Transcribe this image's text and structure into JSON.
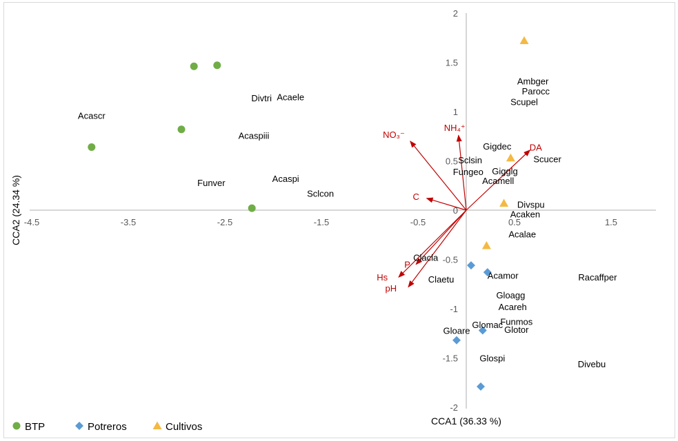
{
  "chart_data": {
    "type": "scatter",
    "xlabel": "CCA1 (36.33 %)",
    "ylabel": "CCA2 (24.34 %)",
    "xlim": [
      -4.5,
      2.0
    ],
    "ylim": [
      -2,
      2
    ],
    "x_ticks": [
      "-4.5",
      "-3.5",
      "-2.5",
      "-1.5",
      "-0.5",
      "0.5",
      "1.5"
    ],
    "x_tick_values": [
      -4.5,
      -3.5,
      -2.5,
      -1.5,
      -0.5,
      0.5,
      1.5
    ],
    "y_ticks": [
      "2",
      "1.5",
      "1",
      "0.5",
      "0",
      "-0.5",
      "-1",
      "-1.5",
      "-2"
    ],
    "y_tick_values": [
      2,
      1.5,
      1,
      0.5,
      0,
      -0.5,
      -1,
      -1.5,
      -2
    ],
    "grid": false,
    "legend_position": "bottom-left",
    "series": [
      {
        "name": "BTP",
        "marker": "circle",
        "color": "#70ad47",
        "points": [
          {
            "x": -2.82,
            "y": 1.46
          },
          {
            "x": -2.58,
            "y": 1.47
          },
          {
            "x": -2.95,
            "y": 0.82
          },
          {
            "x": -3.88,
            "y": 0.64
          },
          {
            "x": -2.22,
            "y": 0.02
          }
        ]
      },
      {
        "name": "Potreros",
        "marker": "diamond",
        "color": "#5b9bd5",
        "points": [
          {
            "x": 0.05,
            "y": -0.56
          },
          {
            "x": 0.22,
            "y": -0.63
          },
          {
            "x": 0.17,
            "y": -1.22
          },
          {
            "x": -0.1,
            "y": -1.32
          },
          {
            "x": 0.15,
            "y": -1.79
          }
        ]
      },
      {
        "name": "Cultivos",
        "marker": "triangle",
        "color": "#f4b942",
        "points": [
          {
            "x": 0.6,
            "y": 1.72
          },
          {
            "x": 0.46,
            "y": 0.53
          },
          {
            "x": 0.39,
            "y": 0.07
          },
          {
            "x": 0.21,
            "y": -0.36
          }
        ]
      }
    ],
    "vectors": [
      {
        "label": "NH₄⁺",
        "x": -0.08,
        "y": 0.76,
        "lx": -0.12,
        "ly": 0.84
      },
      {
        "label": "NO₃⁻",
        "x": -0.58,
        "y": 0.7,
        "lx": -0.75,
        "ly": 0.77
      },
      {
        "label": "DA",
        "x": 0.66,
        "y": 0.61,
        "lx": 0.72,
        "ly": 0.64
      },
      {
        "label": "C",
        "x": -0.41,
        "y": 0.12,
        "lx": -0.52,
        "ly": 0.14
      },
      {
        "label": "P",
        "x": -0.52,
        "y": -0.55,
        "lx": -0.61,
        "ly": -0.55
      },
      {
        "label": "Hs",
        "x": -0.7,
        "y": -0.68,
        "lx": -0.87,
        "ly": -0.68
      },
      {
        "label": "pH",
        "x": -0.6,
        "y": -0.78,
        "lx": -0.78,
        "ly": -0.79
      }
    ],
    "species": [
      {
        "name": "Acascr",
        "x": -3.88,
        "y": 0.96
      },
      {
        "name": "Divtri",
        "x": -2.12,
        "y": 1.14
      },
      {
        "name": "Acaele",
        "x": -1.82,
        "y": 1.15
      },
      {
        "name": "Acaspiii",
        "x": -2.2,
        "y": 0.76
      },
      {
        "name": "Funver",
        "x": -2.64,
        "y": 0.28
      },
      {
        "name": "Acaspi",
        "x": -1.87,
        "y": 0.32
      },
      {
        "name": "Sclcon",
        "x": -1.51,
        "y": 0.17
      },
      {
        "name": "Ambger",
        "x": 0.69,
        "y": 1.31
      },
      {
        "name": "Parocc",
        "x": 0.72,
        "y": 1.21
      },
      {
        "name": "Scupel",
        "x": 0.6,
        "y": 1.1
      },
      {
        "name": "Gigdec",
        "x": 0.32,
        "y": 0.65
      },
      {
        "name": "Sclsin",
        "x": 0.04,
        "y": 0.51
      },
      {
        "name": "Fungeo",
        "x": 0.02,
        "y": 0.39
      },
      {
        "name": "Gigglg",
        "x": 0.4,
        "y": 0.4
      },
      {
        "name": "Scucer",
        "x": 0.84,
        "y": 0.52
      },
      {
        "name": "Acamell",
        "x": 0.33,
        "y": 0.3
      },
      {
        "name": "Divspu",
        "x": 0.67,
        "y": 0.06
      },
      {
        "name": "Acaken",
        "x": 0.61,
        "y": -0.04
      },
      {
        "name": "Acalae",
        "x": 0.58,
        "y": -0.24
      },
      {
        "name": "Clacla",
        "x": -0.42,
        "y": -0.48
      },
      {
        "name": "Claetu",
        "x": -0.26,
        "y": -0.7
      },
      {
        "name": "Acamor",
        "x": 0.38,
        "y": -0.66
      },
      {
        "name": "Racaffper",
        "x": 1.36,
        "y": -0.68
      },
      {
        "name": "Gloagg",
        "x": 0.46,
        "y": -0.86
      },
      {
        "name": "Acareh",
        "x": 0.48,
        "y": -0.98
      },
      {
        "name": "Funmos",
        "x": 0.52,
        "y": -1.13
      },
      {
        "name": "Glomac",
        "x": 0.22,
        "y": -1.16
      },
      {
        "name": "Glotor",
        "x": 0.52,
        "y": -1.21
      },
      {
        "name": "Gloare",
        "x": -0.1,
        "y": -1.22
      },
      {
        "name": "Glospi",
        "x": 0.27,
        "y": -1.5
      },
      {
        "name": "Divebu",
        "x": 1.3,
        "y": -1.56
      }
    ]
  }
}
